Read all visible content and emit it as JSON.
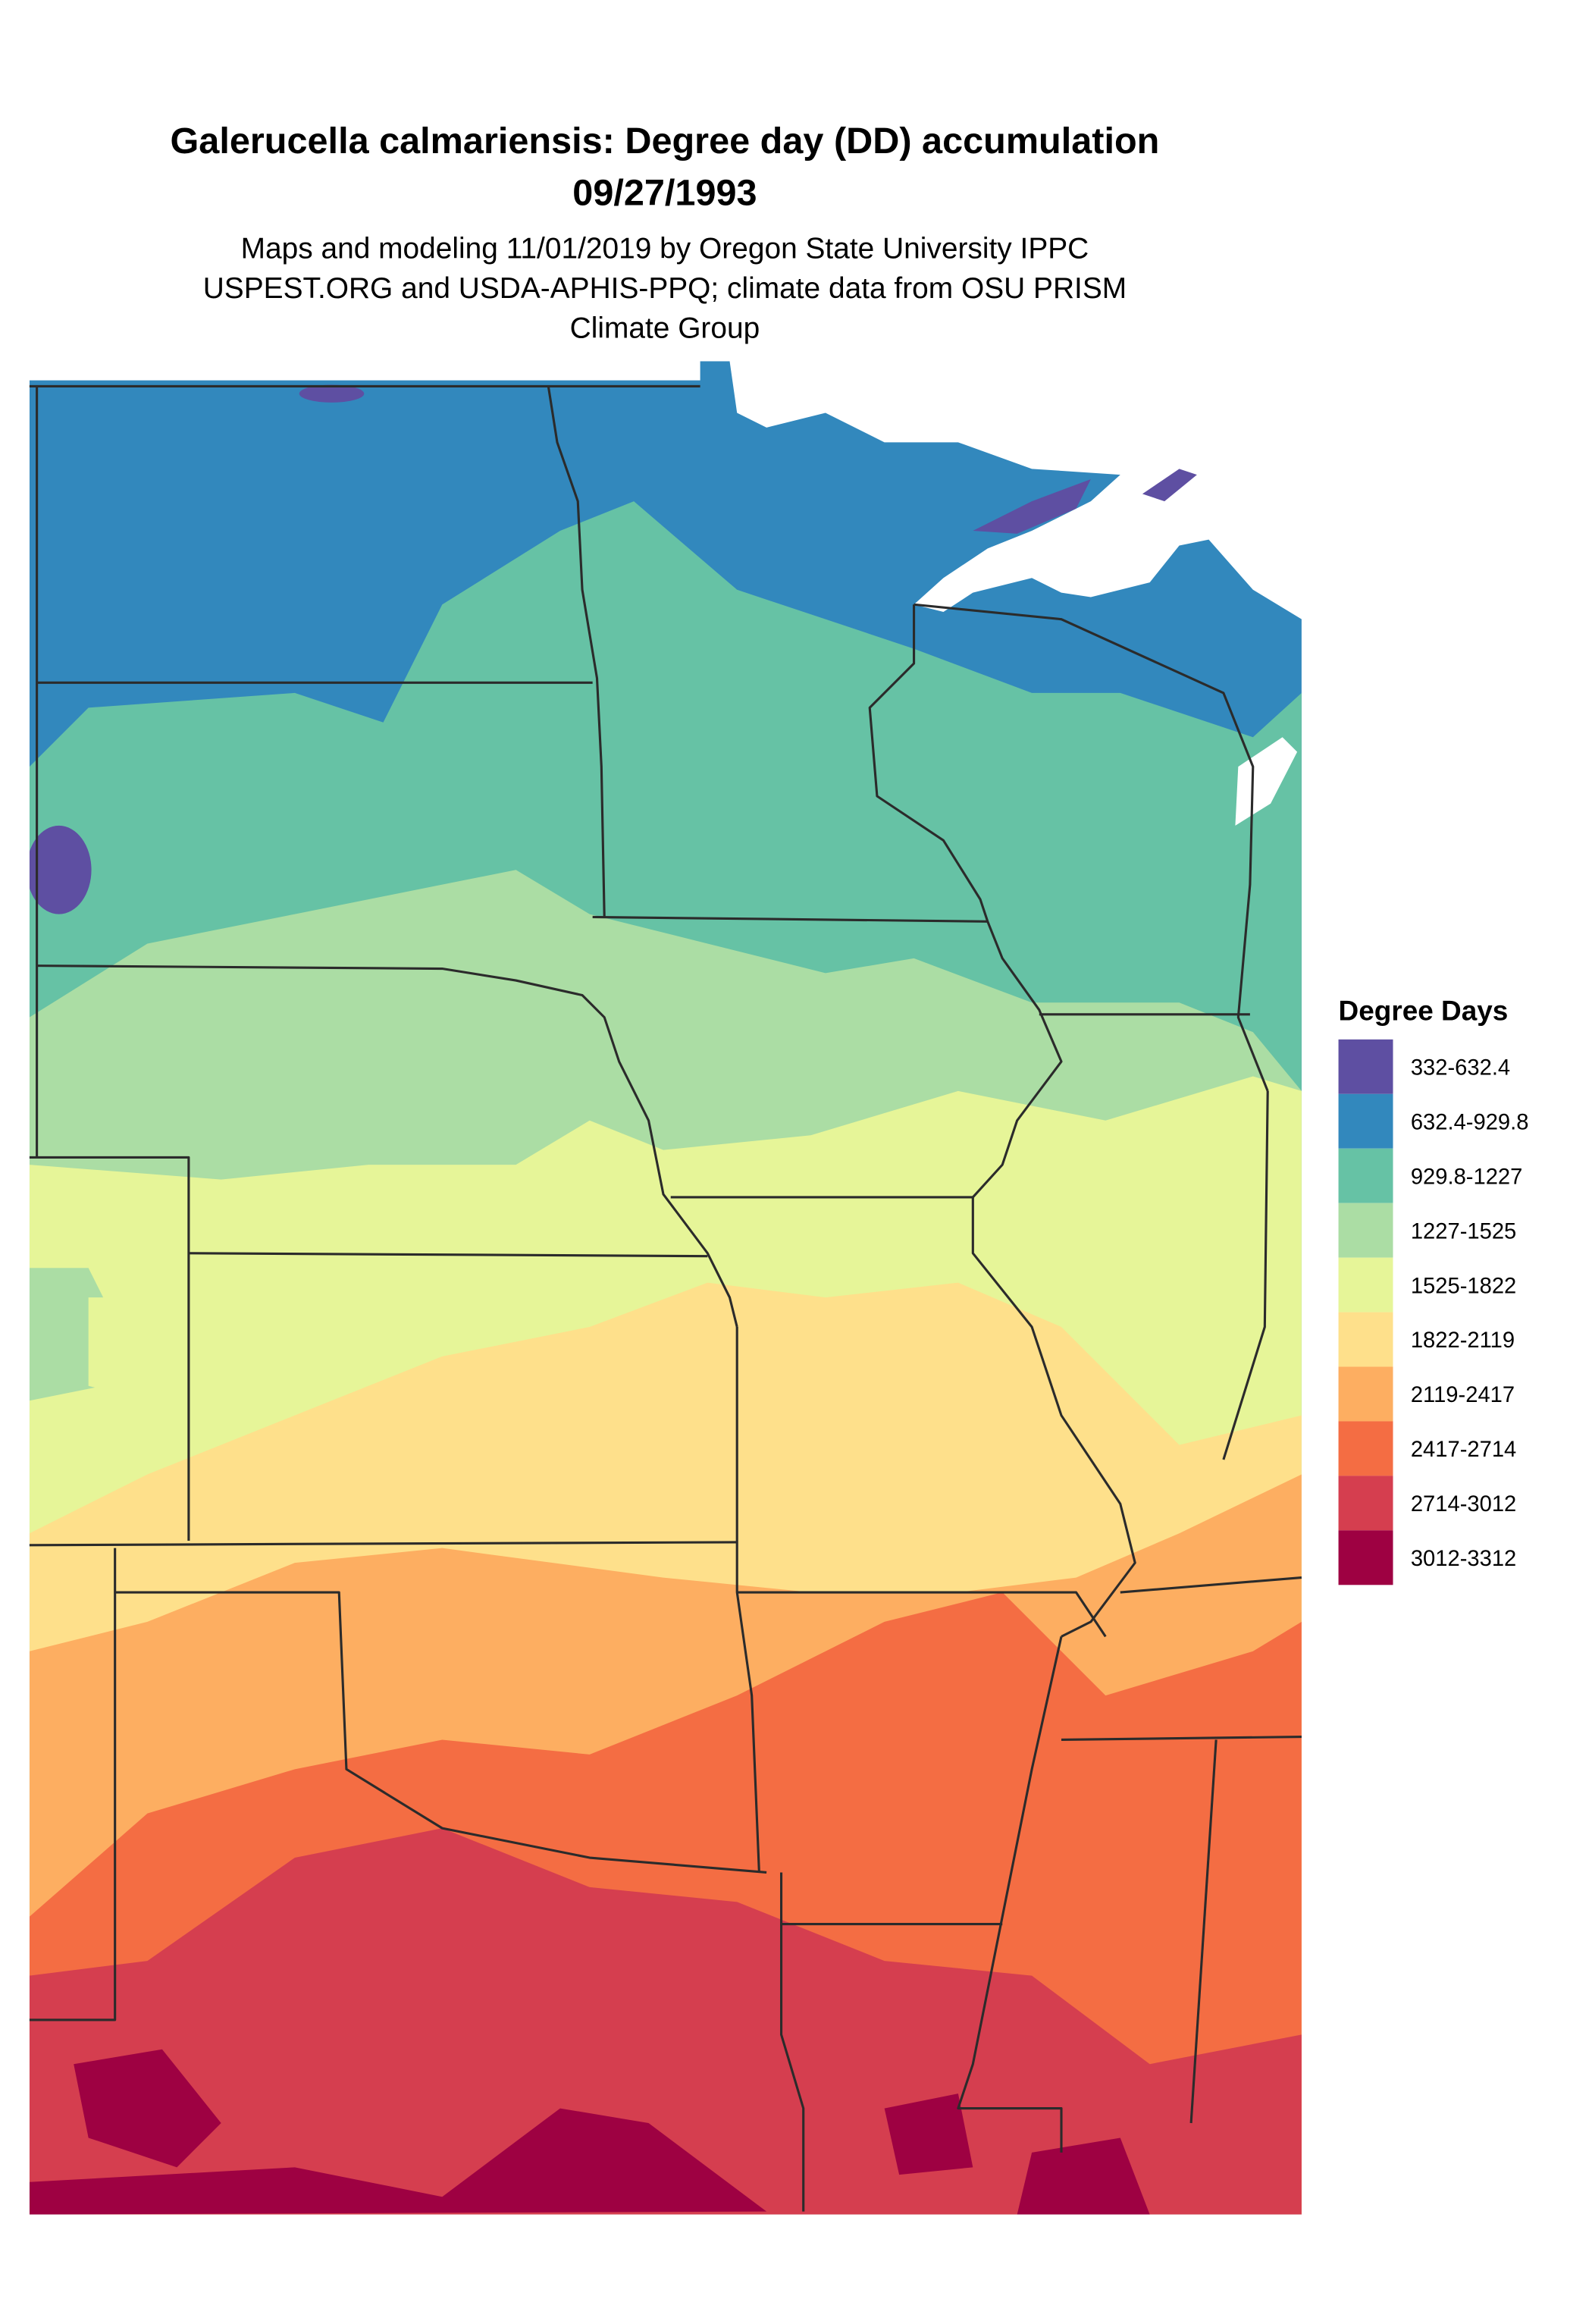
{
  "header": {
    "title": "Galerucella calmariensis: Degree day (DD) accumulation",
    "date": "09/27/1993",
    "subtitle": [
      "Maps and modeling 11/01/2019 by Oregon State University IPPC",
      "USPEST.ORG and USDA-APHIS-PPQ; climate data from OSU PRISM",
      "Climate Group"
    ]
  },
  "legend": {
    "title": "Degree Days",
    "items": [
      {
        "label": "332-632.4",
        "color": "#5E4FA2"
      },
      {
        "label": "632.4-929.8",
        "color": "#3288BD"
      },
      {
        "label": "929.8-1227",
        "color": "#66C2A5"
      },
      {
        "label": "1227-1525",
        "color": "#ABDDA4"
      },
      {
        "label": "1525-1822",
        "color": "#E6F598"
      },
      {
        "label": "1822-2119",
        "color": "#FEE08B"
      },
      {
        "label": "2119-2417",
        "color": "#FDAE61"
      },
      {
        "label": "2417-2714",
        "color": "#F46D43"
      },
      {
        "label": "2714-3012",
        "color": "#D53E4F"
      },
      {
        "label": "3012-3312",
        "color": "#9E0142"
      }
    ]
  }
}
